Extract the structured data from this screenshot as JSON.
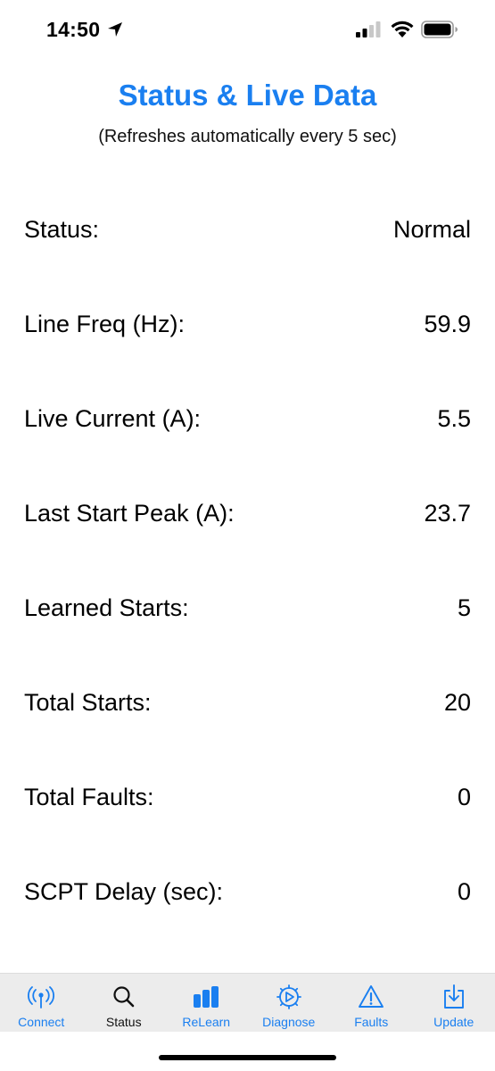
{
  "status_bar": {
    "time": "14:50"
  },
  "header": {
    "title": "Status & Live Data",
    "subtitle": "(Refreshes automatically every 5 sec)"
  },
  "rows": [
    {
      "label": "Status:",
      "value": "Normal"
    },
    {
      "label": "Line Freq (Hz):",
      "value": "59.9"
    },
    {
      "label": "Live Current (A):",
      "value": "5.5"
    },
    {
      "label": "Last Start Peak (A):",
      "value": "23.7"
    },
    {
      "label": "Learned Starts:",
      "value": "5"
    },
    {
      "label": "Total Starts:",
      "value": "20"
    },
    {
      "label": "Total Faults:",
      "value": "0"
    },
    {
      "label": "SCPT Delay (sec):",
      "value": "0"
    }
  ],
  "tabs": [
    {
      "label": "Connect",
      "icon": "antenna-icon"
    },
    {
      "label": "Status",
      "icon": "magnifier-icon",
      "active": true
    },
    {
      "label": "ReLearn",
      "icon": "bar-chart-icon"
    },
    {
      "label": "Diagnose",
      "icon": "gear-play-icon"
    },
    {
      "label": "Faults",
      "icon": "warning-triangle-icon"
    },
    {
      "label": "Update",
      "icon": "download-tray-icon"
    }
  ],
  "colors": {
    "accent": "#1a7ff0",
    "tabbar_bg": "#ececec"
  }
}
